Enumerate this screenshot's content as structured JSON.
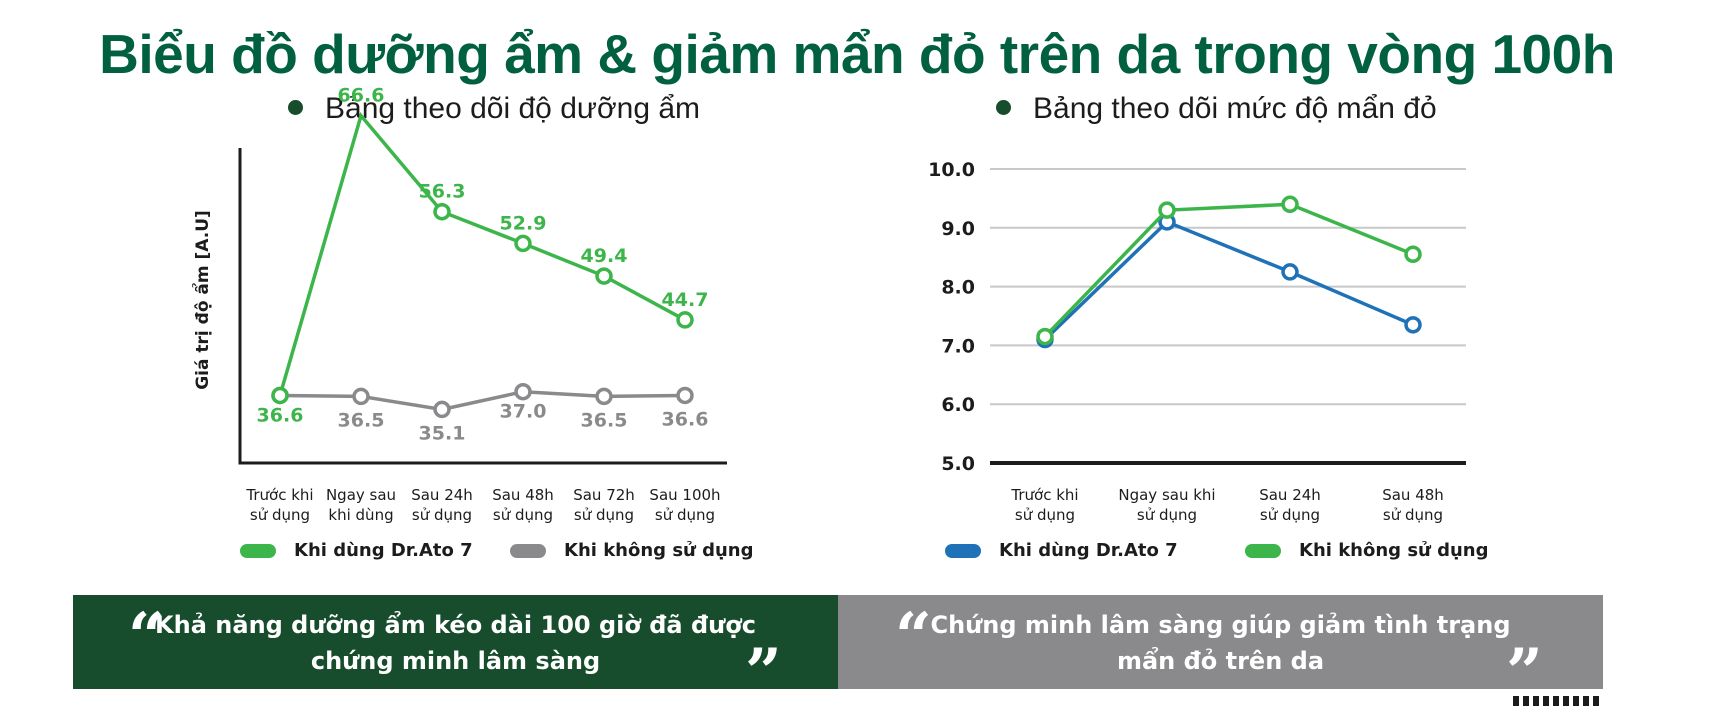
{
  "page": {
    "title": "Biểu đồ dưỡng ẩm & giảm mẩn đỏ trên da trong vòng 100h"
  },
  "colors": {
    "title_green": "#00603f",
    "green": "#3cb54a",
    "gray": "#8a8a8c",
    "blue": "#1f72b8",
    "dark_green_box": "#174d2c",
    "gray_box": "#8a8a8c"
  },
  "chart_data": [
    {
      "type": "line",
      "title": "Bảng theo dõi độ dưỡng ẩm",
      "ylabel": "Giá trị độ ẩm [A.U]",
      "xlabel": "",
      "categories": [
        [
          "Trước khi",
          "sử dụng"
        ],
        [
          "Ngay sau",
          "khi dùng"
        ],
        [
          "Sau 24h",
          "sử dụng"
        ],
        [
          "Sau 48h",
          "sử dụng"
        ],
        [
          "Sau 72h",
          "sử dụng"
        ],
        [
          "Sau 100h",
          "sử dụng"
        ]
      ],
      "ylim": [
        30,
        70
      ],
      "grid": false,
      "legend_position": "bottom",
      "series": [
        {
          "name": "Khi dùng Dr.Ato 7",
          "color": "#3cb54a",
          "values": [
            36.6,
            66.6,
            56.3,
            52.9,
            49.4,
            44.7
          ],
          "labels": [
            "36.6",
            "66.6",
            "56.3",
            "52.9",
            "49.4",
            "44.7"
          ],
          "marker_skip": [
            1
          ]
        },
        {
          "name": "Khi không sử dụng",
          "color": "#8a8a8c",
          "values": [
            36.6,
            36.5,
            35.1,
            37.0,
            36.5,
            36.6
          ],
          "labels": [
            "",
            "36.5",
            "35.1",
            "37.0",
            "36.5",
            "36.6"
          ],
          "marker_skip": []
        }
      ]
    },
    {
      "type": "line",
      "title": "Bảng theo dõi mức độ mẩn đỏ",
      "xlabel": "",
      "ylabel": "",
      "categories": [
        [
          "Trước khi",
          "sử dụng"
        ],
        [
          "Ngay sau khi",
          "sử dụng"
        ],
        [
          "Sau 24h",
          "sử dụng"
        ],
        [
          "Sau 48h",
          "sử dụng"
        ]
      ],
      "ylim": [
        5.0,
        10.0
      ],
      "yticks": [
        "5.0",
        "6.0",
        "7.0",
        "8.0",
        "9.0",
        "10.0"
      ],
      "grid": true,
      "legend_position": "bottom",
      "series": [
        {
          "name": "Khi dùng Dr.Ato 7",
          "color": "#1f72b8",
          "values": [
            7.1,
            9.1,
            8.25,
            7.35
          ]
        },
        {
          "name": "Khi không sử dụng",
          "color": "#3cb54a",
          "values": [
            7.15,
            9.3,
            9.4,
            8.55
          ]
        }
      ]
    }
  ],
  "quotes": [
    {
      "lines": [
        "Khả năng dưỡng ẩm kéo dài 100 giờ đã được",
        "chứng minh lâm sàng"
      ],
      "open_mark": "“",
      "close_mark": "”"
    },
    {
      "lines": [
        "Chứng minh lâm sàng giúp giảm tình trạng",
        "mẩn đỏ trên da"
      ],
      "open_mark": "“",
      "close_mark": "”"
    }
  ]
}
